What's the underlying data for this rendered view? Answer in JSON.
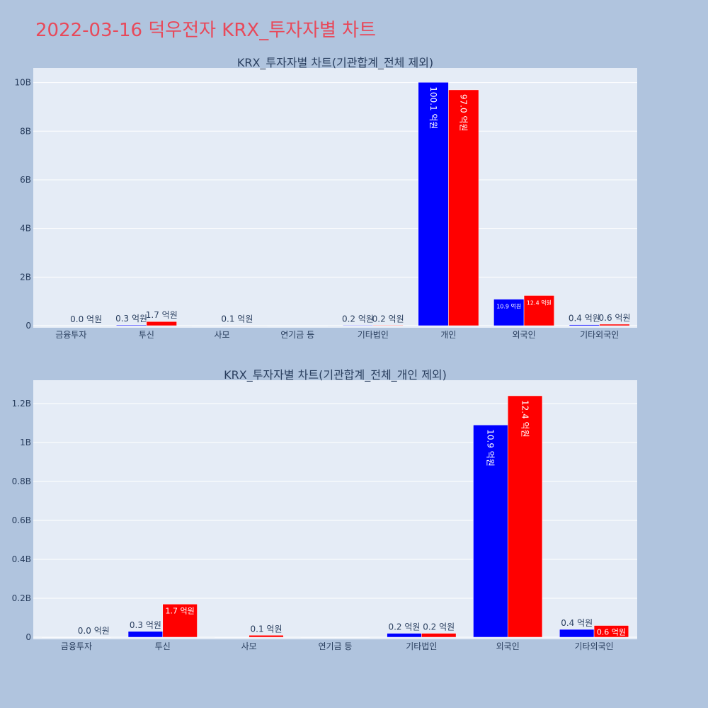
{
  "page": {
    "title": "2022-03-16 덕우전자 KRX_투자자별 차트"
  },
  "colors": {
    "buy": "#0000ff",
    "sell": "#ff0000",
    "plot_bg": "#e5ecf6",
    "paper_bg": "#b0c4de",
    "title": "#e8495a"
  },
  "chart_data": [
    {
      "type": "bar",
      "title": "KRX_투자자별 차트(기관합계_전체 제외)",
      "categories": [
        "금융투자",
        "투신",
        "사모",
        "연기금 등",
        "기타법인",
        "개인",
        "외국인",
        "기타외국인"
      ],
      "series": [
        {
          "color": "#0000ff",
          "values": [
            0,
            30000000,
            0,
            0,
            20000000,
            10010000000,
            1090000000,
            40000000
          ],
          "labels": [
            "",
            "0.3 억원",
            "",
            "",
            "0.2 억원",
            "100.1 억원",
            "10.9 억원",
            "0.4 억원"
          ]
        },
        {
          "color": "#ff0000",
          "values": [
            0,
            170000000,
            10000000,
            0,
            20000000,
            9700000000,
            1240000000,
            60000000
          ],
          "labels": [
            "0.0 억원",
            "1.7 억원",
            "0.1 억원",
            "",
            "0.2 억원",
            "97.0 억원",
            "12.4 억원",
            "0.6 억원"
          ]
        }
      ],
      "ylim": [
        0,
        10600000000
      ],
      "yticks": [
        0,
        2000000000,
        4000000000,
        6000000000,
        8000000000,
        10000000000
      ],
      "ytick_labels": [
        "0",
        "2B",
        "4B",
        "6B",
        "8B",
        "10B"
      ],
      "grid": true
    },
    {
      "type": "bar",
      "title": "KRX_투자자별 차트(기관합계_전체_개인 제외)",
      "categories": [
        "금융투자",
        "투신",
        "사모",
        "연기금 등",
        "기타법인",
        "외국인",
        "기타외국인"
      ],
      "series": [
        {
          "color": "#0000ff",
          "values": [
            0,
            30000000,
            0,
            0,
            20000000,
            1090000000,
            40000000
          ],
          "labels": [
            "",
            "0.3 억원",
            "",
            "",
            "0.2 억원",
            "10.9 억원",
            "0.4 억원"
          ]
        },
        {
          "color": "#ff0000",
          "values": [
            0,
            170000000,
            10000000,
            0,
            20000000,
            1240000000,
            60000000
          ],
          "labels": [
            "0.0 억원",
            "1.7 억원",
            "0.1 억원",
            "",
            "0.2 억원",
            "12.4 억원",
            "0.6 억원"
          ]
        }
      ],
      "ylim": [
        0,
        1320000000
      ],
      "yticks": [
        0,
        200000000,
        400000000,
        600000000,
        800000000,
        1000000000,
        1200000000
      ],
      "ytick_labels": [
        "0",
        "0.2B",
        "0.4B",
        "0.6B",
        "0.8B",
        "1B",
        "1.2B"
      ],
      "grid": true
    }
  ]
}
